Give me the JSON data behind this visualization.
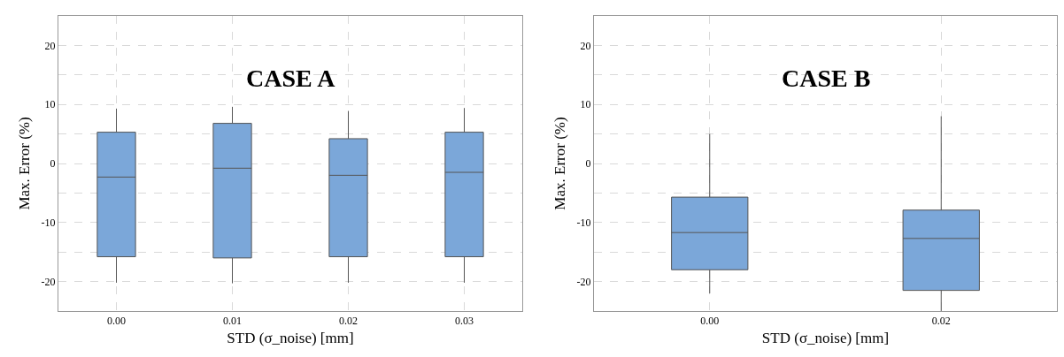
{
  "chart_data": [
    {
      "type": "box",
      "title": "CASE A",
      "xlabel": "STD (σ_noise) [mm]",
      "ylabel": "Max. Error (%)",
      "categories": [
        "0.00",
        "0.01",
        "0.02",
        "0.03"
      ],
      "color": "#7ba7d9",
      "boxes": [
        {
          "low": -20.2,
          "q1": -15.8,
          "median": -2.3,
          "q3": 5.3,
          "high": 9.3
        },
        {
          "low": -20.3,
          "q1": -16.0,
          "median": -0.8,
          "q3": 6.8,
          "high": 9.6
        },
        {
          "low": -20.2,
          "q1": -15.8,
          "median": -2.0,
          "q3": 4.2,
          "high": 8.9
        },
        {
          "low": -20.2,
          "q1": -15.8,
          "median": -1.5,
          "q3": 5.3,
          "high": 9.4
        }
      ],
      "ylim": [
        -25,
        25
      ],
      "yticks": [
        -20,
        {
          "value": -15,
          "label": null
        },
        -10,
        {
          "value": -5,
          "label": null
        },
        0,
        {
          "value": 5,
          "label": null
        },
        10,
        {
          "value": 15,
          "label": null
        },
        20
      ],
      "grid": true
    },
    {
      "type": "box",
      "title": "CASE B",
      "xlabel": "STD (σ_noise) [mm]",
      "ylabel": "Max. Error (%)",
      "categories": [
        "0.00",
        "0.02"
      ],
      "color": "#7ba7d9",
      "boxes": [
        {
          "low": -22.0,
          "q1": -18.0,
          "median": -11.7,
          "q3": -5.7,
          "high": 5.0
        },
        {
          "low": -25.0,
          "q1": -21.5,
          "median": -12.7,
          "q3": -7.9,
          "high": 8.0
        }
      ],
      "ylim": [
        -25,
        25
      ],
      "yticks": [
        -20,
        {
          "value": -15,
          "label": null
        },
        -10,
        {
          "value": -5,
          "label": null
        },
        0,
        {
          "value": 5,
          "label": null
        },
        10,
        {
          "value": 15,
          "label": null
        },
        20
      ],
      "grid": true
    }
  ]
}
